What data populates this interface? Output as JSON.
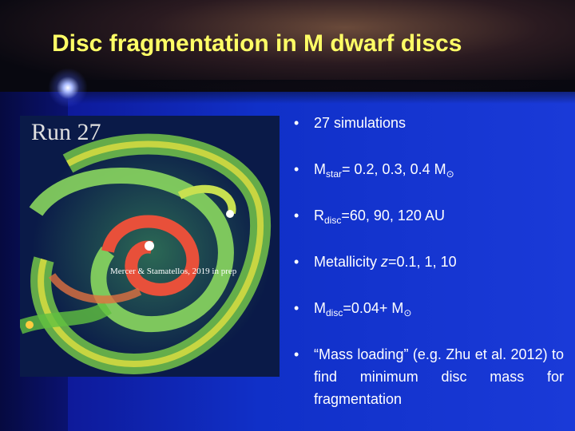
{
  "title": "Disc fragmentation in M dwarf discs",
  "figure": {
    "label": "Run 27",
    "caption": "Mercer & Stamatellos, 2019 in prep"
  },
  "bullets": [
    [
      {
        "text": "27 simulations"
      }
    ],
    [
      {
        "text": "M"
      },
      {
        "text": "star",
        "sub": true
      },
      {
        "text": "= 0.2, 0.3, 0.4 M"
      },
      {
        "text": "⊙",
        "sub": true
      }
    ],
    [
      {
        "text": "R"
      },
      {
        "text": "disc",
        "sub": true
      },
      {
        "text": "=60, 90, 120 AU"
      }
    ],
    [
      {
        "text": "Metallicity "
      },
      {
        "text": "z",
        "italic": true
      },
      {
        "text": "=0.1, 1, 10"
      }
    ],
    [
      {
        "text": "M"
      },
      {
        "text": "disc",
        "sub": true
      },
      {
        "text": "=0.04+ M"
      },
      {
        "text": "⊙",
        "sub": true
      }
    ],
    [
      {
        "text": "“Mass loading” (e.g. Zhu et al. 2012) to find minimum disc mass for fragmentation"
      }
    ]
  ]
}
